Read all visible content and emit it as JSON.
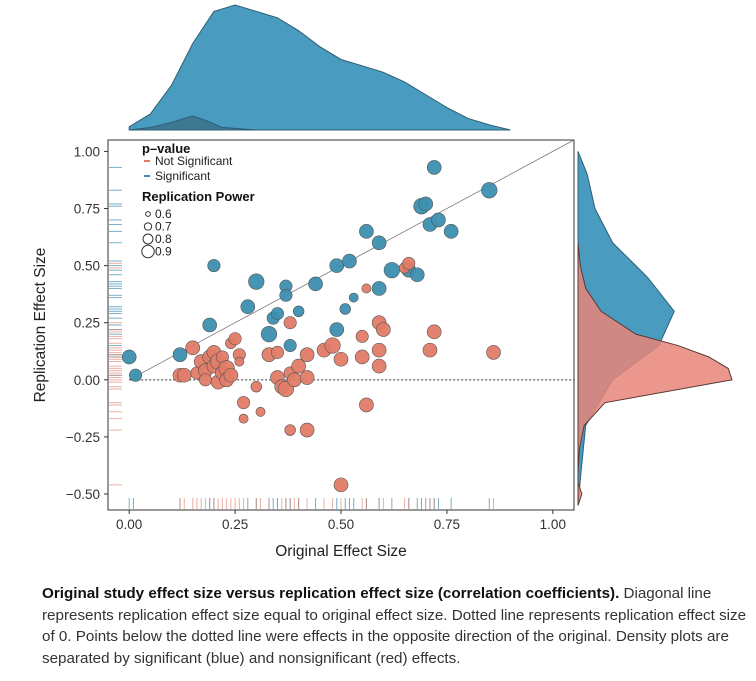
{
  "caption": {
    "bold": "Original study effect size versus replication effect size (correlation coefficients).",
    "text": " Diagonal line represents replication effect size equal to original effect size. Dotted line represents replication effect size of 0. Points below the dotted line were effects in the opposite direction of the original. Density plots are separated by significant (blue) and nonsignificant (red) effects."
  },
  "colors": {
    "significant": "#3d8fb0",
    "not_significant": "#e07b67",
    "sig_fill_density": "#4a9bc0",
    "nonsig_fill_density": "#e8857a",
    "point_edge": "#555555"
  },
  "chart_data": {
    "type": "scatter",
    "xlabel": "Original Effect Size",
    "ylabel": "Replication Effect Size",
    "xlim": [
      -0.05,
      1.05
    ],
    "ylim": [
      -0.57,
      1.05
    ],
    "xticks": [
      "0.00",
      "0.25",
      "0.50",
      "0.75",
      "1.00"
    ],
    "yticks": [
      "1.00",
      "0.75",
      "0.50",
      "0.25",
      "0.00",
      "−0.25",
      "−0.50"
    ],
    "xtick_values": [
      0,
      0.25,
      0.5,
      0.75,
      1.0
    ],
    "ytick_values": [
      1.0,
      0.75,
      0.5,
      0.25,
      0.0,
      -0.25,
      -0.5
    ],
    "legend": {
      "pvalue_title": "p–value",
      "pvalue_items": [
        "Not Significant",
        "Significant"
      ],
      "power_title": "Replication Power",
      "power_items": [
        "0.6",
        "0.7",
        "0.8",
        "0.9"
      ],
      "power_values": [
        0.6,
        0.7,
        0.8,
        0.9
      ],
      "placement": "top-left"
    },
    "reference_lines": {
      "diagonal": "y = x",
      "dotted": "y = 0"
    },
    "series": [
      {
        "name": "Significant",
        "points": [
          {
            "x": 0.0,
            "y": 0.1,
            "power": 0.85
          },
          {
            "x": 0.015,
            "y": 0.02,
            "power": 0.8
          },
          {
            "x": 0.12,
            "y": 0.11,
            "power": 0.85
          },
          {
            "x": 0.19,
            "y": 0.24,
            "power": 0.85
          },
          {
            "x": 0.2,
            "y": 0.5,
            "power": 0.8
          },
          {
            "x": 0.28,
            "y": 0.32,
            "power": 0.85
          },
          {
            "x": 0.3,
            "y": 0.43,
            "power": 0.9
          },
          {
            "x": 0.33,
            "y": 0.2,
            "power": 0.9
          },
          {
            "x": 0.34,
            "y": 0.27,
            "power": 0.8
          },
          {
            "x": 0.35,
            "y": 0.29,
            "power": 0.8
          },
          {
            "x": 0.37,
            "y": 0.41,
            "power": 0.8
          },
          {
            "x": 0.37,
            "y": 0.37,
            "power": 0.8
          },
          {
            "x": 0.38,
            "y": 0.15,
            "power": 0.8
          },
          {
            "x": 0.4,
            "y": 0.3,
            "power": 0.75
          },
          {
            "x": 0.44,
            "y": 0.42,
            "power": 0.85
          },
          {
            "x": 0.49,
            "y": 0.22,
            "power": 0.85
          },
          {
            "x": 0.49,
            "y": 0.5,
            "power": 0.85
          },
          {
            "x": 0.52,
            "y": 0.52,
            "power": 0.85
          },
          {
            "x": 0.51,
            "y": 0.31,
            "power": 0.75
          },
          {
            "x": 0.53,
            "y": 0.36,
            "power": 0.7
          },
          {
            "x": 0.56,
            "y": 0.65,
            "power": 0.85
          },
          {
            "x": 0.59,
            "y": 0.6,
            "power": 0.85
          },
          {
            "x": 0.59,
            "y": 0.4,
            "power": 0.85
          },
          {
            "x": 0.62,
            "y": 0.48,
            "power": 0.9
          },
          {
            "x": 0.66,
            "y": 0.48,
            "power": 0.85
          },
          {
            "x": 0.68,
            "y": 0.46,
            "power": 0.85
          },
          {
            "x": 0.69,
            "y": 0.76,
            "power": 0.9
          },
          {
            "x": 0.7,
            "y": 0.77,
            "power": 0.85
          },
          {
            "x": 0.71,
            "y": 0.68,
            "power": 0.85
          },
          {
            "x": 0.72,
            "y": 0.93,
            "power": 0.85
          },
          {
            "x": 0.73,
            "y": 0.7,
            "power": 0.85
          },
          {
            "x": 0.76,
            "y": 0.65,
            "power": 0.85
          },
          {
            "x": 0.85,
            "y": 0.83,
            "power": 0.9
          }
        ]
      },
      {
        "name": "Not Significant",
        "points": [
          {
            "x": 0.12,
            "y": 0.02,
            "power": 0.85
          },
          {
            "x": 0.13,
            "y": 0.02,
            "power": 0.85
          },
          {
            "x": 0.15,
            "y": 0.14,
            "power": 0.85
          },
          {
            "x": 0.16,
            "y": 0.03,
            "power": 0.8
          },
          {
            "x": 0.17,
            "y": 0.08,
            "power": 0.85
          },
          {
            "x": 0.18,
            "y": 0.04,
            "power": 0.85
          },
          {
            "x": 0.18,
            "y": 0.0,
            "power": 0.8
          },
          {
            "x": 0.19,
            "y": 0.1,
            "power": 0.85
          },
          {
            "x": 0.2,
            "y": 0.06,
            "power": 0.85
          },
          {
            "x": 0.2,
            "y": 0.12,
            "power": 0.85
          },
          {
            "x": 0.21,
            "y": -0.01,
            "power": 0.85
          },
          {
            "x": 0.21,
            "y": 0.08,
            "power": 0.9
          },
          {
            "x": 0.22,
            "y": 0.03,
            "power": 0.85
          },
          {
            "x": 0.22,
            "y": 0.1,
            "power": 0.8
          },
          {
            "x": 0.23,
            "y": 0.05,
            "power": 0.9
          },
          {
            "x": 0.23,
            "y": 0.0,
            "power": 0.85
          },
          {
            "x": 0.24,
            "y": 0.02,
            "power": 0.85
          },
          {
            "x": 0.24,
            "y": 0.16,
            "power": 0.75
          },
          {
            "x": 0.25,
            "y": 0.18,
            "power": 0.8
          },
          {
            "x": 0.26,
            "y": 0.11,
            "power": 0.8
          },
          {
            "x": 0.26,
            "y": 0.08,
            "power": 0.7
          },
          {
            "x": 0.27,
            "y": -0.1,
            "power": 0.8
          },
          {
            "x": 0.27,
            "y": -0.17,
            "power": 0.7
          },
          {
            "x": 0.3,
            "y": -0.03,
            "power": 0.75
          },
          {
            "x": 0.31,
            "y": -0.14,
            "power": 0.7
          },
          {
            "x": 0.33,
            "y": 0.11,
            "power": 0.85
          },
          {
            "x": 0.35,
            "y": 0.12,
            "power": 0.8
          },
          {
            "x": 0.35,
            "y": 0.01,
            "power": 0.85
          },
          {
            "x": 0.36,
            "y": -0.03,
            "power": 0.85
          },
          {
            "x": 0.37,
            "y": -0.04,
            "power": 0.9
          },
          {
            "x": 0.38,
            "y": 0.25,
            "power": 0.8
          },
          {
            "x": 0.38,
            "y": 0.03,
            "power": 0.8
          },
          {
            "x": 0.38,
            "y": -0.22,
            "power": 0.75
          },
          {
            "x": 0.39,
            "y": 0.0,
            "power": 0.85
          },
          {
            "x": 0.4,
            "y": 0.06,
            "power": 0.85
          },
          {
            "x": 0.42,
            "y": 0.11,
            "power": 0.85
          },
          {
            "x": 0.42,
            "y": 0.01,
            "power": 0.85
          },
          {
            "x": 0.42,
            "y": -0.22,
            "power": 0.85
          },
          {
            "x": 0.46,
            "y": 0.13,
            "power": 0.85
          },
          {
            "x": 0.48,
            "y": 0.15,
            "power": 0.9
          },
          {
            "x": 0.5,
            "y": 0.09,
            "power": 0.85
          },
          {
            "x": 0.5,
            "y": -0.46,
            "power": 0.85
          },
          {
            "x": 0.55,
            "y": 0.1,
            "power": 0.85
          },
          {
            "x": 0.55,
            "y": 0.19,
            "power": 0.8
          },
          {
            "x": 0.56,
            "y": 0.4,
            "power": 0.7
          },
          {
            "x": 0.56,
            "y": -0.11,
            "power": 0.85
          },
          {
            "x": 0.59,
            "y": 0.13,
            "power": 0.85
          },
          {
            "x": 0.59,
            "y": 0.06,
            "power": 0.85
          },
          {
            "x": 0.59,
            "y": 0.25,
            "power": 0.85
          },
          {
            "x": 0.6,
            "y": 0.22,
            "power": 0.85
          },
          {
            "x": 0.65,
            "y": 0.49,
            "power": 0.75
          },
          {
            "x": 0.66,
            "y": 0.51,
            "power": 0.8
          },
          {
            "x": 0.71,
            "y": 0.13,
            "power": 0.85
          },
          {
            "x": 0.72,
            "y": 0.21,
            "power": 0.85
          },
          {
            "x": 0.86,
            "y": 0.12,
            "power": 0.85
          }
        ]
      }
    ],
    "density_x": {
      "significant": [
        [
          0.0,
          0.05
        ],
        [
          0.05,
          0.25
        ],
        [
          0.1,
          0.7
        ],
        [
          0.15,
          1.35
        ],
        [
          0.2,
          1.85
        ],
        [
          0.25,
          1.95
        ],
        [
          0.3,
          1.85
        ],
        [
          0.35,
          1.75
        ],
        [
          0.4,
          1.55
        ],
        [
          0.45,
          1.3
        ],
        [
          0.5,
          1.1
        ],
        [
          0.55,
          1.0
        ],
        [
          0.6,
          0.9
        ],
        [
          0.65,
          0.75
        ],
        [
          0.7,
          0.55
        ],
        [
          0.75,
          0.35
        ],
        [
          0.8,
          0.18
        ],
        [
          0.85,
          0.08
        ],
        [
          0.9,
          0.0
        ]
      ],
      "not_significant": [
        [
          0.0,
          0.0
        ],
        [
          0.05,
          0.04
        ],
        [
          0.1,
          0.12
        ],
        [
          0.15,
          0.22
        ],
        [
          0.18,
          0.15
        ],
        [
          0.22,
          0.04
        ],
        [
          0.3,
          0.0
        ]
      ]
    },
    "density_y": {
      "significant": [
        [
          -0.55,
          0.0
        ],
        [
          -0.4,
          0.04
        ],
        [
          -0.2,
          0.1
        ],
        [
          0.0,
          0.45
        ],
        [
          0.15,
          1.05
        ],
        [
          0.3,
          1.25
        ],
        [
          0.45,
          0.9
        ],
        [
          0.6,
          0.45
        ],
        [
          0.75,
          0.22
        ],
        [
          0.9,
          0.12
        ],
        [
          1.0,
          0.0
        ]
      ],
      "not_significant": [
        [
          -0.55,
          0.0
        ],
        [
          -0.5,
          0.05
        ],
        [
          -0.45,
          0.0
        ],
        [
          -0.4,
          0.0
        ],
        [
          -0.3,
          0.02
        ],
        [
          -0.2,
          0.08
        ],
        [
          -0.1,
          0.35
        ],
        [
          0.0,
          2.0
        ],
        [
          0.05,
          1.95
        ],
        [
          0.1,
          1.7
        ],
        [
          0.15,
          1.3
        ],
        [
          0.2,
          0.75
        ],
        [
          0.3,
          0.3
        ],
        [
          0.4,
          0.1
        ],
        [
          0.5,
          0.03
        ],
        [
          0.6,
          0.0
        ]
      ]
    },
    "rug_x": {
      "significant": [
        0.0,
        0.01,
        0.12,
        0.19,
        0.2,
        0.28,
        0.3,
        0.33,
        0.34,
        0.35,
        0.37,
        0.38,
        0.4,
        0.44,
        0.49,
        0.51,
        0.52,
        0.53,
        0.56,
        0.59,
        0.62,
        0.66,
        0.68,
        0.69,
        0.7,
        0.71,
        0.72,
        0.73,
        0.76,
        0.85
      ],
      "not_significant": [
        0.12,
        0.13,
        0.15,
        0.16,
        0.17,
        0.18,
        0.19,
        0.2,
        0.21,
        0.22,
        0.23,
        0.24,
        0.25,
        0.26,
        0.27,
        0.3,
        0.31,
        0.33,
        0.35,
        0.36,
        0.37,
        0.38,
        0.39,
        0.4,
        0.42,
        0.46,
        0.48,
        0.5,
        0.55,
        0.56,
        0.59,
        0.6,
        0.65,
        0.66,
        0.71,
        0.72,
        0.86
      ]
    },
    "rug_y": {
      "significant": [
        0.1,
        0.02,
        0.11,
        0.24,
        0.5,
        0.32,
        0.43,
        0.2,
        0.27,
        0.29,
        0.41,
        0.37,
        0.15,
        0.3,
        0.42,
        0.22,
        0.52,
        0.31,
        0.36,
        0.65,
        0.6,
        0.4,
        0.48,
        0.46,
        0.76,
        0.77,
        0.68,
        0.93,
        0.7,
        0.83
      ],
      "not_significant": [
        0.02,
        0.14,
        0.03,
        0.08,
        0.04,
        0.0,
        0.1,
        0.06,
        0.12,
        -0.01,
        0.05,
        0.16,
        0.18,
        0.11,
        -0.1,
        -0.17,
        -0.03,
        -0.14,
        0.01,
        -0.04,
        0.25,
        -0.22,
        0.09,
        -0.46,
        0.19,
        -0.11,
        0.13,
        0.22,
        0.49,
        0.51,
        0.21
      ]
    }
  }
}
